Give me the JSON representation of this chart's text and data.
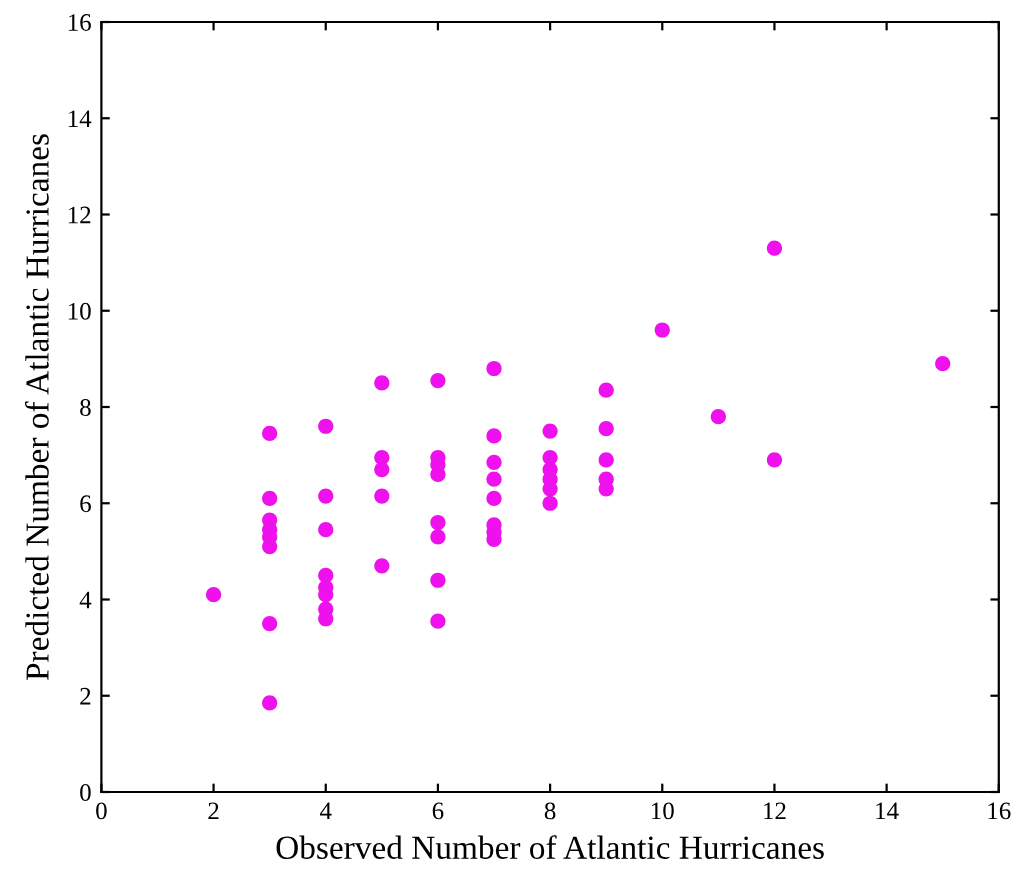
{
  "chart_data": {
    "type": "scatter",
    "xlabel": "Observed Number of Atlantic Hurricanes",
    "ylabel": "Predicted Number of Atlantic Hurricanes",
    "xlim": [
      0,
      16
    ],
    "ylim": [
      0,
      16
    ],
    "xticks": [
      0,
      2,
      4,
      6,
      8,
      10,
      12,
      14,
      16
    ],
    "yticks": [
      0,
      2,
      4,
      6,
      8,
      10,
      12,
      14,
      16
    ],
    "marker": "circle",
    "grid": false,
    "legend": false,
    "series": [
      {
        "color": "#ee11ee",
        "x": [
          2,
          3,
          3,
          3,
          3,
          3,
          3,
          3,
          3,
          4,
          4,
          4,
          4,
          4,
          4,
          4,
          4,
          5,
          5,
          5,
          5,
          5,
          6,
          6,
          6,
          6,
          6,
          6,
          6,
          6,
          7,
          7,
          7,
          7,
          7,
          7,
          7,
          7,
          8,
          8,
          8,
          8,
          8,
          8,
          9,
          9,
          9,
          9,
          9,
          10,
          11,
          12,
          12,
          15
        ],
        "values": [
          4.1,
          7.45,
          6.1,
          5.65,
          5.45,
          5.3,
          5.1,
          3.5,
          1.85,
          7.6,
          6.15,
          5.45,
          4.5,
          4.25,
          4.1,
          3.8,
          3.6,
          8.5,
          6.95,
          6.7,
          6.15,
          4.7,
          8.55,
          6.95,
          6.8,
          6.6,
          5.6,
          5.3,
          4.4,
          3.55,
          8.8,
          7.4,
          6.85,
          6.5,
          6.1,
          5.55,
          5.4,
          5.25,
          7.5,
          6.95,
          6.7,
          6.5,
          6.3,
          6.0,
          8.35,
          7.55,
          6.9,
          6.5,
          6.3,
          9.6,
          7.8,
          11.3,
          6.9,
          8.9
        ]
      }
    ]
  }
}
